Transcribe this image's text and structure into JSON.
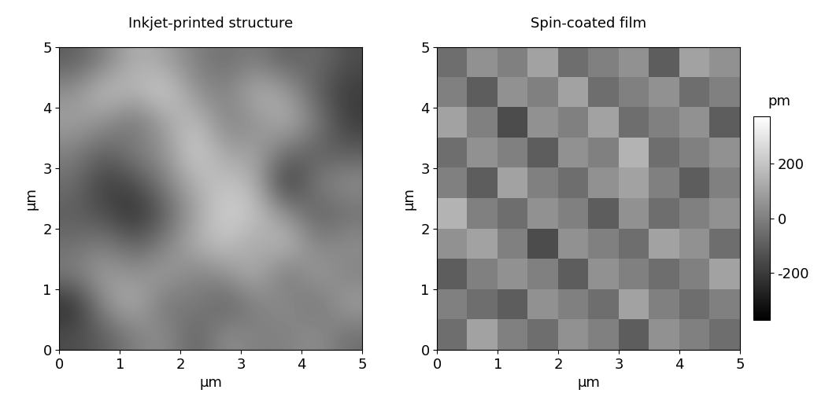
{
  "chart_data": [
    {
      "type": "heatmap",
      "title": "Inkjet-printed structure",
      "xlabel": "µm",
      "ylabel": "µm",
      "xlim": [
        0,
        5
      ],
      "ylim": [
        0,
        5
      ],
      "xticks": [
        0,
        1,
        2,
        3,
        4,
        5
      ],
      "yticks": [
        0,
        1,
        2,
        3,
        4,
        5
      ],
      "clim": [
        -375,
        375
      ],
      "cells": [
        [
          -100,
          0,
          150,
          100,
          0,
          -50,
          0,
          -100,
          -50,
          -150
        ],
        [
          50,
          200,
          150,
          250,
          50,
          0,
          150,
          100,
          -100,
          -200
        ],
        [
          100,
          50,
          -50,
          100,
          200,
          0,
          50,
          150,
          0,
          -200
        ],
        [
          0,
          -100,
          0,
          50,
          250,
          100,
          100,
          -50,
          -100,
          -100
        ],
        [
          -50,
          -200,
          -150,
          0,
          150,
          200,
          150,
          -250,
          0,
          50
        ],
        [
          -100,
          -150,
          -250,
          -100,
          100,
          250,
          200,
          50,
          -100,
          -50
        ],
        [
          -50,
          0,
          -100,
          0,
          150,
          200,
          100,
          200,
          0,
          50
        ],
        [
          0,
          100,
          50,
          100,
          0,
          50,
          150,
          -50,
          100,
          0
        ],
        [
          -250,
          50,
          150,
          -50,
          0,
          -100,
          0,
          50,
          -50,
          100
        ],
        [
          -150,
          -100,
          0,
          50,
          -100,
          50,
          0,
          0,
          50,
          -50
        ]
      ]
    },
    {
      "type": "heatmap",
      "title": "Spin-coated film",
      "xlabel": "µm",
      "ylabel": "µm",
      "xlim": [
        0,
        5
      ],
      "ylim": [
        0,
        5
      ],
      "xticks": [
        0,
        1,
        2,
        3,
        4,
        5
      ],
      "yticks": [
        0,
        1,
        2,
        3,
        4,
        5
      ],
      "clim": [
        -375,
        375
      ],
      "colorbar": {
        "label": "pm",
        "ticks": [
          -200,
          0,
          200
        ]
      },
      "cells": [
        [
          -50,
          50,
          0,
          100,
          -50,
          0,
          50,
          -100,
          100,
          50
        ],
        [
          0,
          -100,
          50,
          0,
          100,
          -50,
          0,
          50,
          -50,
          0
        ],
        [
          100,
          0,
          -150,
          50,
          0,
          100,
          -50,
          0,
          50,
          -100
        ],
        [
          -50,
          50,
          0,
          -100,
          50,
          0,
          150,
          -50,
          0,
          50
        ],
        [
          0,
          -100,
          100,
          0,
          -50,
          50,
          100,
          0,
          -100,
          0
        ],
        [
          150,
          0,
          -50,
          50,
          0,
          -100,
          50,
          -50,
          0,
          50
        ],
        [
          50,
          100,
          0,
          -150,
          50,
          0,
          -50,
          100,
          50,
          -50
        ],
        [
          -100,
          0,
          50,
          0,
          -100,
          50,
          0,
          -50,
          0,
          100
        ],
        [
          0,
          -50,
          -100,
          50,
          0,
          -50,
          100,
          0,
          -50,
          0
        ],
        [
          -50,
          100,
          0,
          -50,
          50,
          0,
          -100,
          50,
          0,
          -50
        ]
      ]
    }
  ]
}
